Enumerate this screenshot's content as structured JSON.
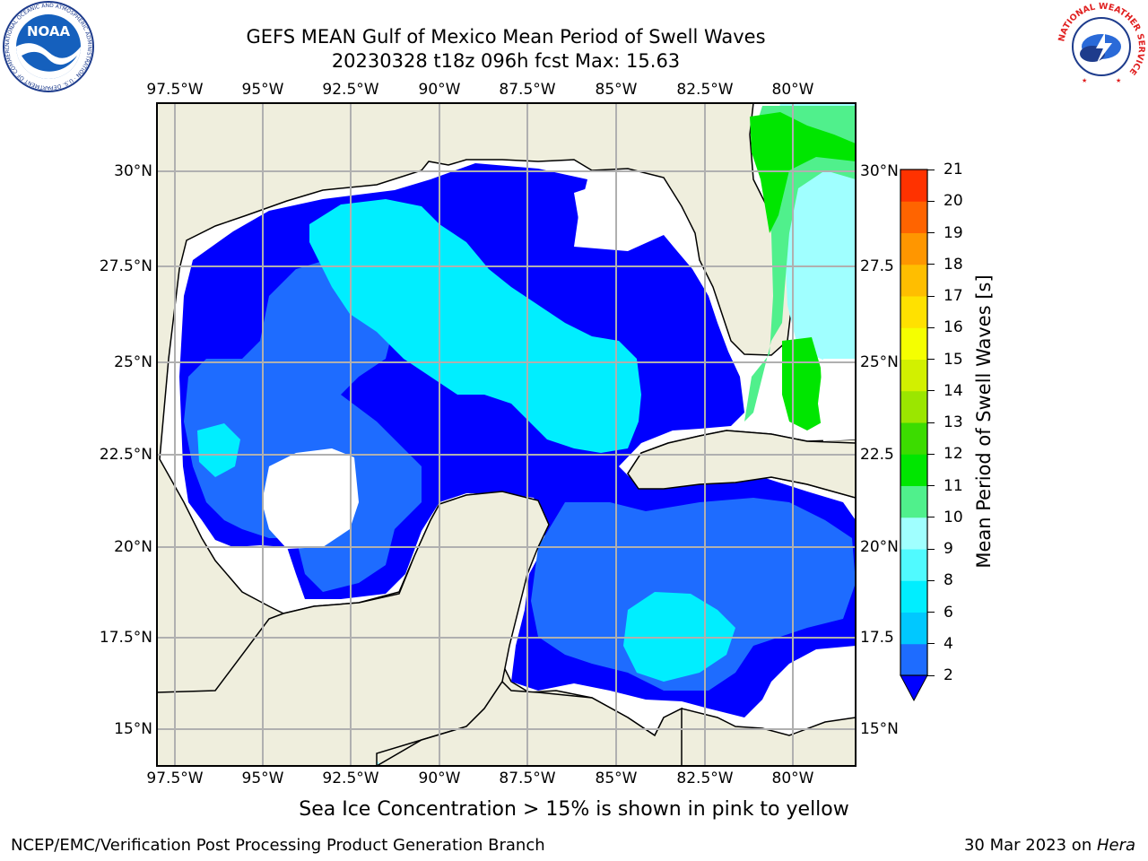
{
  "header": {
    "title_line1": "GEFS MEAN Gulf of Mexico Mean Period of Swell Waves",
    "title_line2": "20230328 t18z 096h fcst   Max: 15.63"
  },
  "logos": {
    "noaa_text": "NOAA",
    "noaa_ring_text": "NATIONAL OCEANIC AND ATMOSPHERIC ADMINISTRATION · U.S. DEPARTMENT OF COMMERCE",
    "nws_ring_text": "NATIONAL WEATHER SERVICE"
  },
  "map": {
    "lon_ticks_top": [
      "97.5°W",
      "95°W",
      "92.5°W",
      "90°W",
      "87.5°W",
      "85°W",
      "82.5°W",
      "80°W"
    ],
    "lon_ticks_bottom": [
      "97.5°W",
      "95°W",
      "92.5°W",
      "90°W",
      "87.5°W",
      "85°W",
      "82.5°W",
      "80°W"
    ],
    "lat_ticks_left": [
      "30°N",
      "27.5°N",
      "25°N",
      "22.5°N",
      "20°N",
      "17.5°N",
      "15°N"
    ],
    "lat_ticks_right": [
      "30°N",
      "27.5",
      "25°N",
      "22.5",
      "20°N",
      "17.5",
      "15°N"
    ],
    "colors": {
      "land": "#efeedd",
      "grid": "#b0b0b0",
      "no_data": "#ffffff"
    }
  },
  "colorbar": {
    "label": "Mean Period of Swell Waves [s]",
    "ticks": [
      "2",
      "4",
      "6",
      "8",
      "9",
      "10",
      "11",
      "12",
      "13",
      "14",
      "15",
      "16",
      "17",
      "18",
      "19",
      "20",
      "21"
    ],
    "colors": [
      "#0000ff",
      "#1e6cff",
      "#00c8ff",
      "#00eeff",
      "#50faff",
      "#a0ffff",
      "#50f08c",
      "#00e600",
      "#3cdc00",
      "#9be600",
      "#d2f000",
      "#f5ff00",
      "#ffe100",
      "#ffbe00",
      "#ff9600",
      "#ff6400",
      "#ff3200",
      "#ff0000"
    ]
  },
  "caption": "Sea Ice Concentration > 15% is shown in pink to yellow",
  "footer": {
    "left": "NCEP/EMC/Verification Post Processing Product Generation Branch",
    "right_prefix": "30 Mar 2023 on ",
    "right_host": "Hera"
  }
}
